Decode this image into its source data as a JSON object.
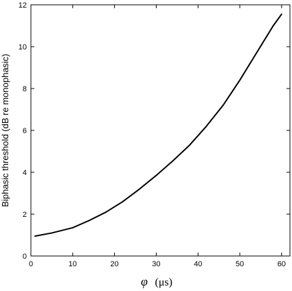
{
  "chart_data": {
    "type": "line",
    "title": "",
    "xlabel_symbol": "φ",
    "xlabel_unit": "(μs)",
    "ylabel": "Biphasic threshold (dB re monophasic)",
    "xlim": [
      0,
      62
    ],
    "ylim": [
      0,
      12
    ],
    "xticks": [
      0,
      10,
      20,
      30,
      40,
      50,
      60
    ],
    "yticks": [
      0,
      2,
      4,
      6,
      8,
      10,
      12
    ],
    "grid": false,
    "series": [
      {
        "color": "#000000",
        "x": [
          1,
          5,
          10,
          14,
          18,
          22,
          26,
          30,
          34,
          38,
          42,
          46,
          50,
          54,
          58,
          60
        ],
        "y": [
          0.95,
          1.1,
          1.35,
          1.7,
          2.1,
          2.6,
          3.2,
          3.85,
          4.55,
          5.3,
          6.2,
          7.2,
          8.4,
          9.7,
          11.0,
          11.55
        ]
      }
    ]
  }
}
